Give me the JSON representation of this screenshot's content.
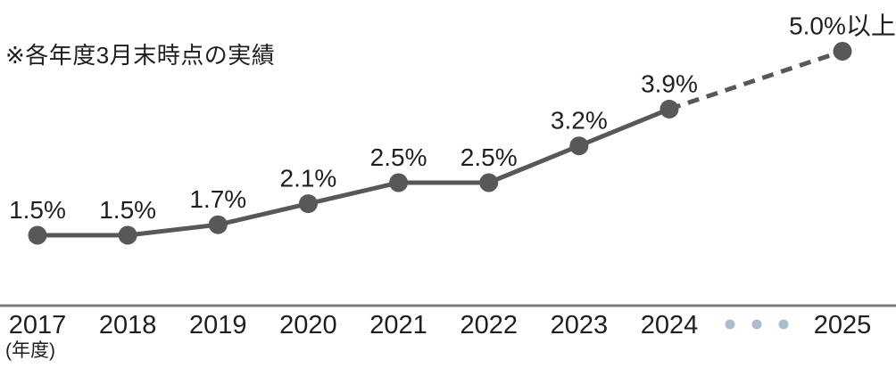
{
  "note": "※各年度3月末時点の実績",
  "chart_data": {
    "type": "line",
    "title": "",
    "xlabel": "(年度)",
    "ylabel": "",
    "categories": [
      "2017",
      "2018",
      "2019",
      "2020",
      "2021",
      "2022",
      "2023",
      "2024",
      "2025"
    ],
    "values": [
      1.5,
      1.5,
      1.7,
      2.1,
      2.5,
      2.5,
      3.2,
      3.9,
      5.0
    ],
    "point_labels": [
      "1.5%",
      "1.5%",
      "1.7%",
      "2.1%",
      "2.5%",
      "2.5%",
      "3.2%",
      "3.9%",
      "5.0%以上"
    ],
    "last_segment_style": "dashed",
    "ellipsis_between": [
      "2024",
      "2025"
    ],
    "grid": false,
    "legend": false,
    "ylim": [
      1.0,
      5.5
    ],
    "colors": {
      "line": "#595757",
      "point": "#595757",
      "axis": "#7d7d7d",
      "ellipsis_dots": "#aebccf",
      "text": "#1f1f1f"
    }
  }
}
